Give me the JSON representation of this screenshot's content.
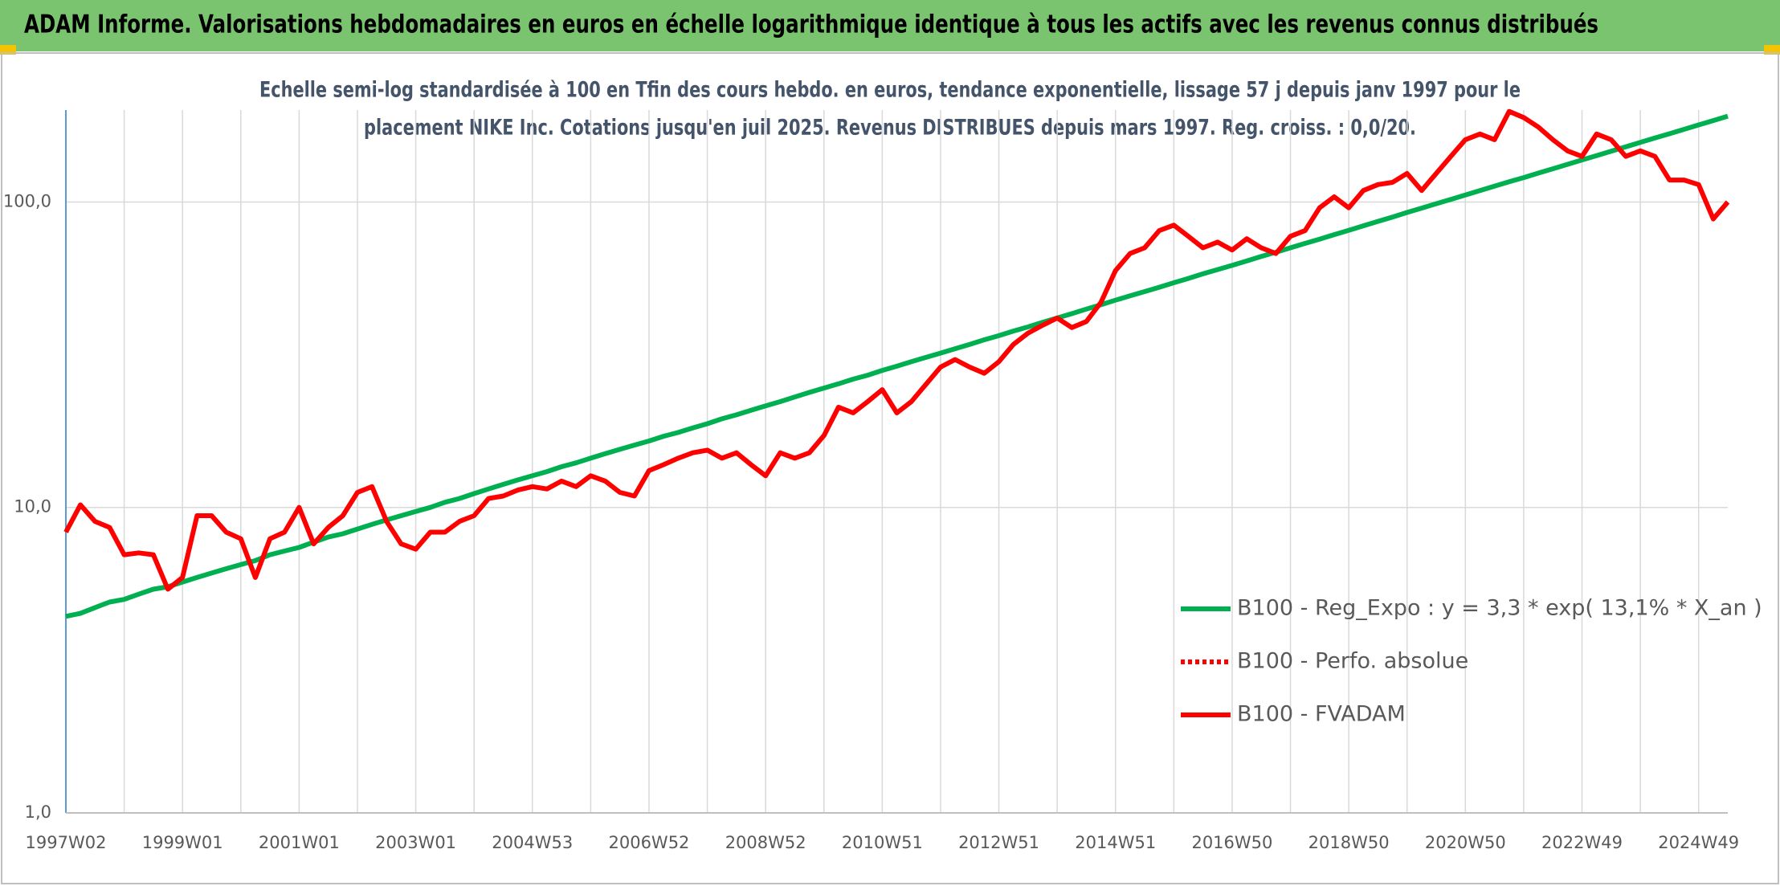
{
  "chart_data": {
    "type": "line",
    "title": "ADAM Informe. Valorisations hebdomadaires en euros en échelle logarithmique identique à tous les actifs avec les revenus connus distribués",
    "subtitle": [
      "Echelle semi-log standardisée à 100 en Tfin des cours hebdo. en euros, tendance exponentielle, lissage 57 j depuis janv 1997 pour le",
      "placement NIKE Inc. Cotations jusqu'en juil 2025. Revenus DISTRIBUES depuis mars 1997. Reg. croiss. : 0,0/20."
    ],
    "log_scale": true,
    "grid": true,
    "legend_position": "right",
    "ylim": [
      1,
      200
    ],
    "yticks": [
      {
        "value": 1,
        "label": "1,0"
      },
      {
        "value": 10,
        "label": "10,0"
      },
      {
        "value": 100,
        "label": "100,0"
      }
    ],
    "categories": [
      "1997W02",
      null,
      null,
      null,
      null,
      null,
      null,
      null,
      "1999W01",
      null,
      null,
      null,
      null,
      null,
      null,
      null,
      "2001W01",
      null,
      null,
      null,
      null,
      null,
      null,
      null,
      "2003W01",
      null,
      null,
      null,
      null,
      null,
      null,
      null,
      "2004W53",
      null,
      null,
      null,
      null,
      null,
      null,
      null,
      "2006W52",
      null,
      null,
      null,
      null,
      null,
      null,
      null,
      "2008W52",
      null,
      null,
      null,
      null,
      null,
      null,
      null,
      "2010W51",
      null,
      null,
      null,
      null,
      null,
      null,
      null,
      "2012W51",
      null,
      null,
      null,
      null,
      null,
      null,
      null,
      "2014W51",
      null,
      null,
      null,
      null,
      null,
      null,
      null,
      "2016W50",
      null,
      null,
      null,
      null,
      null,
      null,
      null,
      "2018W50",
      null,
      null,
      null,
      null,
      null,
      null,
      null,
      "2020W50",
      null,
      null,
      null,
      null,
      null,
      null,
      null,
      "2022W49",
      null,
      null,
      null,
      null,
      null,
      null,
      null,
      "2024W49",
      null,
      null
    ],
    "series": [
      {
        "name": "B100 - Reg_Expo : y = 3,3 * exp( 13,1% *  X_an )",
        "color": "#00b050",
        "width": 6,
        "values": [
          4.4,
          4.5,
          4.7,
          4.9,
          5.0,
          5.2,
          5.4,
          5.5,
          5.7,
          5.9,
          6.1,
          6.3,
          6.5,
          6.7,
          7.0,
          7.2,
          7.4,
          7.7,
          8.0,
          8.2,
          8.5,
          8.8,
          9.1,
          9.4,
          9.7,
          10.0,
          10.4,
          10.7,
          11.1,
          11.5,
          11.9,
          12.3,
          12.7,
          13.1,
          13.6,
          14.0,
          14.5,
          15.0,
          15.5,
          16.0,
          16.5,
          17.1,
          17.6,
          18.2,
          18.8,
          19.5,
          20.1,
          20.8,
          21.5,
          22.2,
          23.0,
          23.8,
          24.6,
          25.4,
          26.3,
          27.1,
          28.1,
          29.0,
          30.0,
          31.0,
          32.0,
          33.1,
          34.2,
          35.4,
          36.5,
          37.8,
          39.0,
          40.4,
          41.7,
          43.1,
          44.6,
          46.1,
          47.7,
          49.3,
          50.9,
          52.6,
          54.4,
          56.2,
          58.2,
          60.1,
          62.0,
          64.1,
          66.3,
          68.5,
          70.8,
          73.2,
          75.6,
          78.2,
          80.8,
          83.6,
          86.4,
          89.3,
          92.4,
          95.5,
          98.7,
          102,
          105.4,
          109,
          112.7,
          116.5,
          120.2,
          124.3,
          128.5,
          132.8,
          137.3,
          141.8,
          146.6,
          151.6,
          156.7,
          162,
          167.3,
          172.9,
          178.8,
          184.8,
          191
        ]
      },
      {
        "name": "B100 - Perfo. absolue",
        "color": "#ff0000",
        "dashed": true
      },
      {
        "name": "B100 - FVADAM",
        "color": "#ff0000",
        "width": 6,
        "values": [
          8.3,
          10.2,
          9.0,
          8.6,
          7.0,
          7.1,
          7.0,
          5.4,
          5.9,
          9.4,
          9.4,
          8.3,
          7.9,
          5.9,
          7.9,
          8.3,
          10.0,
          7.6,
          8.6,
          9.4,
          11.2,
          11.7,
          9.0,
          7.6,
          7.3,
          8.3,
          8.3,
          9.0,
          9.4,
          10.7,
          10.9,
          11.4,
          11.7,
          11.5,
          12.2,
          11.7,
          12.7,
          12.2,
          11.2,
          10.9,
          13.2,
          13.8,
          14.5,
          15.1,
          15.4,
          14.5,
          15.1,
          13.8,
          12.7,
          15.1,
          14.5,
          15.1,
          17.2,
          21.3,
          20.4,
          22.2,
          24.3,
          20.4,
          22.2,
          25.3,
          28.8,
          30.5,
          28.8,
          27.5,
          30.0,
          34.2,
          37.2,
          39.5,
          41.7,
          38.8,
          40.6,
          46.9,
          59.6,
          67.8,
          70.8,
          80.6,
          84.0,
          77.2,
          70.8,
          73.9,
          69.6,
          75.8,
          70.8,
          67.8,
          77.2,
          80.6,
          95.7,
          104,
          95.7,
          109,
          114,
          116,
          124,
          109,
          124,
          141,
          160,
          167,
          160,
          198,
          189,
          176,
          160,
          147,
          141,
          167,
          160,
          141,
          147,
          141,
          118,
          118,
          114,
          88,
          100
        ]
      }
    ]
  }
}
